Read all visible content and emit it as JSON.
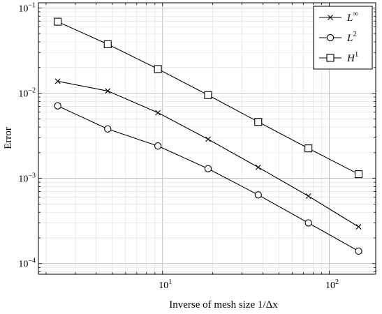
{
  "chart_data": {
    "type": "line",
    "xscale": "log",
    "yscale": "log",
    "xlabel": "Inverse of mesh size 1/Δx",
    "ylabel": "Error",
    "xlim": [
      1.8,
      190
    ],
    "ylim": [
      7.5e-05,
      0.115
    ],
    "x_tick_labels": [
      {
        "value": 10,
        "base": "10",
        "exp": "1"
      },
      {
        "value": 100,
        "base": "10",
        "exp": "2"
      }
    ],
    "y_tick_labels": [
      {
        "value": 0.0001,
        "base": "10",
        "exp": "−4"
      },
      {
        "value": 0.001,
        "base": "10",
        "exp": "−3"
      },
      {
        "value": 0.01,
        "base": "10",
        "exp": "−2"
      },
      {
        "value": 0.1,
        "base": "10",
        "exp": "−1"
      }
    ],
    "grid": true,
    "legend_position": "top-right",
    "series": [
      {
        "name": "L∞",
        "base": "L",
        "sup": "∞",
        "marker": "x",
        "x": [
          2.35,
          4.69,
          9.38,
          18.75,
          37.5,
          75,
          150
        ],
        "y": [
          0.0138,
          0.0106,
          0.0059,
          0.00288,
          0.00135,
          0.00062,
          0.00027
        ]
      },
      {
        "name": "L2",
        "base": "L",
        "sup": "2",
        "marker": "circle",
        "x": [
          2.35,
          4.69,
          9.38,
          18.75,
          37.5,
          75,
          150
        ],
        "y": [
          0.0071,
          0.0038,
          0.0024,
          0.0013,
          0.00064,
          0.0003,
          0.00014
        ]
      },
      {
        "name": "H1",
        "base": "H",
        "sup": "1",
        "marker": "square",
        "x": [
          2.35,
          4.69,
          9.38,
          18.75,
          37.5,
          75,
          150
        ],
        "y": [
          0.069,
          0.0375,
          0.0192,
          0.0095,
          0.0046,
          0.00225,
          0.00112
        ]
      }
    ]
  }
}
